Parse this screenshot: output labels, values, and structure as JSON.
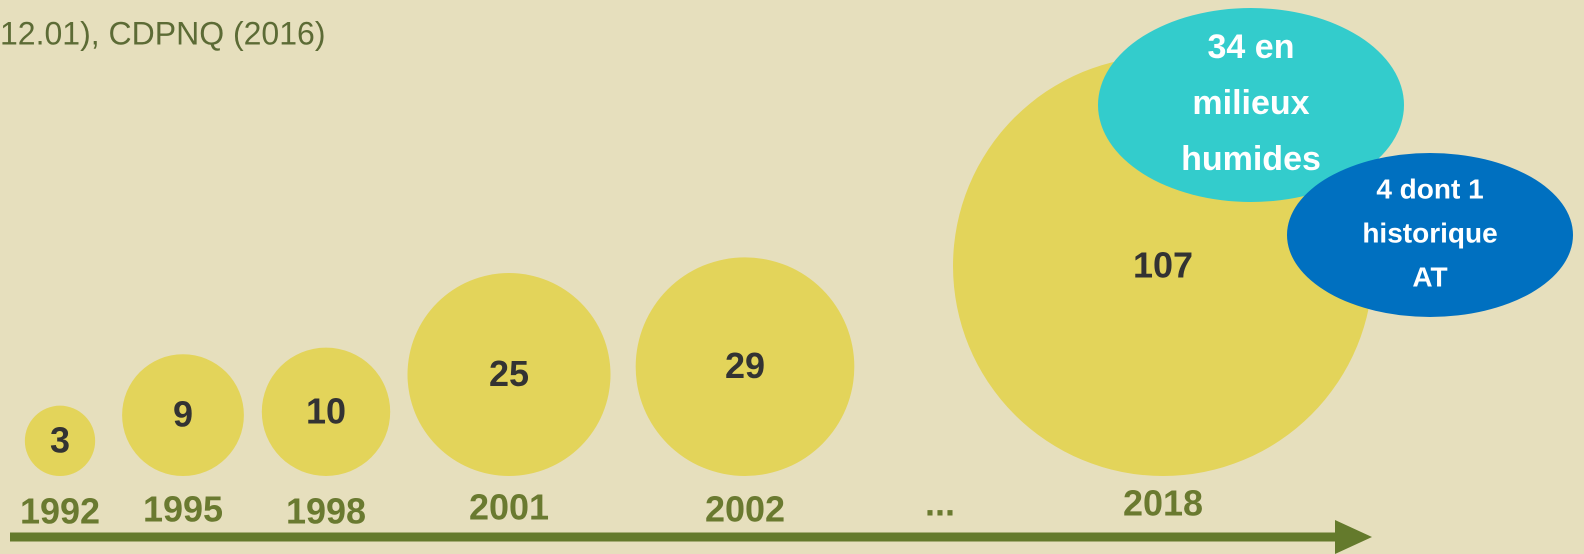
{
  "chart_data": {
    "type": "bubble",
    "source": "12.01), CDPNQ (2016)",
    "categories": [
      "1992",
      "1995",
      "1998",
      "2001",
      "2002",
      "2018"
    ],
    "values": [
      3,
      9,
      10,
      25,
      29,
      107
    ],
    "color": "#e3d45a",
    "gap_label": "...",
    "annotations": [
      {
        "lines": [
          "34 en",
          "milieux",
          "humides"
        ],
        "color": "#33cccc"
      },
      {
        "lines": [
          "4 dont 1",
          "historique",
          "AT"
        ],
        "color": "#0070c0"
      }
    ],
    "axis_color": "#647a2c"
  }
}
